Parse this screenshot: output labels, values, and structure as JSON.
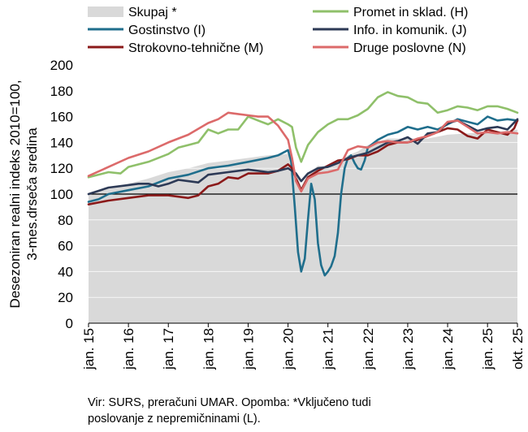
{
  "chart_data": {
    "type": "line",
    "ylabel_line1": "Desezoniran realni indeks 2010=100,",
    "ylabel_line2": "3-mes.drseča sredina",
    "ylim": [
      0,
      200
    ],
    "yticks": [
      0,
      20,
      40,
      60,
      80,
      100,
      120,
      140,
      160,
      180,
      200
    ],
    "reference_line": 100,
    "xlim": [
      2015.0,
      2025.75
    ],
    "xtick_labels": [
      "jan. 15",
      "jan. 16",
      "jan. 17",
      "jan. 18",
      "jan. 19",
      "jan. 20",
      "jan. 21",
      "jan. 22",
      "jan. 23",
      "jan. 24",
      "jan. 25",
      "okt. 25"
    ],
    "xtick_positions": [
      2015.0,
      2016.0,
      2017.0,
      2018.0,
      2019.0,
      2020.0,
      2021.0,
      2022.0,
      2023.0,
      2024.0,
      2025.0,
      2025.75
    ],
    "area": {
      "name": "Skupaj *",
      "color": "#d9d9d9",
      "points": [
        [
          2015.0,
          100
        ],
        [
          2015.5,
          104
        ],
        [
          2016.0,
          108
        ],
        [
          2016.5,
          112
        ],
        [
          2017.0,
          117
        ],
        [
          2017.5,
          120
        ],
        [
          2018.0,
          124
        ],
        [
          2018.5,
          126
        ],
        [
          2019.0,
          128
        ],
        [
          2019.5,
          130
        ],
        [
          2020.0,
          131
        ],
        [
          2020.17,
          120
        ],
        [
          2020.33,
          106
        ],
        [
          2020.5,
          116
        ],
        [
          2020.75,
          122
        ],
        [
          2021.0,
          120
        ],
        [
          2021.25,
          124
        ],
        [
          2021.5,
          130
        ],
        [
          2021.75,
          133
        ],
        [
          2022.0,
          138
        ],
        [
          2022.5,
          143
        ],
        [
          2023.0,
          143
        ],
        [
          2023.5,
          143
        ],
        [
          2024.0,
          146
        ],
        [
          2024.5,
          147
        ],
        [
          2025.0,
          148
        ],
        [
          2025.5,
          149
        ],
        [
          2025.75,
          150
        ]
      ]
    },
    "series": [
      {
        "name": "Promet in sklad. (H)",
        "color": "#8fc06a",
        "points": [
          [
            2015.0,
            113
          ],
          [
            2015.5,
            117
          ],
          [
            2015.8,
            116
          ],
          [
            2016.0,
            121
          ],
          [
            2016.5,
            125
          ],
          [
            2017.0,
            131
          ],
          [
            2017.25,
            136
          ],
          [
            2017.5,
            138
          ],
          [
            2017.75,
            140
          ],
          [
            2018.0,
            150
          ],
          [
            2018.25,
            147
          ],
          [
            2018.5,
            150
          ],
          [
            2018.75,
            150
          ],
          [
            2019.0,
            160
          ],
          [
            2019.25,
            157
          ],
          [
            2019.5,
            154
          ],
          [
            2019.75,
            158
          ],
          [
            2020.0,
            154
          ],
          [
            2020.1,
            152
          ],
          [
            2020.2,
            136
          ],
          [
            2020.33,
            125
          ],
          [
            2020.5,
            138
          ],
          [
            2020.75,
            148
          ],
          [
            2021.0,
            154
          ],
          [
            2021.25,
            158
          ],
          [
            2021.5,
            158
          ],
          [
            2021.75,
            161
          ],
          [
            2022.0,
            166
          ],
          [
            2022.25,
            175
          ],
          [
            2022.5,
            179
          ],
          [
            2022.75,
            176
          ],
          [
            2023.0,
            175
          ],
          [
            2023.25,
            171
          ],
          [
            2023.5,
            170
          ],
          [
            2023.75,
            163
          ],
          [
            2024.0,
            165
          ],
          [
            2024.25,
            168
          ],
          [
            2024.5,
            167
          ],
          [
            2024.75,
            165
          ],
          [
            2025.0,
            168
          ],
          [
            2025.25,
            168
          ],
          [
            2025.5,
            166
          ],
          [
            2025.75,
            163
          ]
        ]
      },
      {
        "name": "Gostinstvo (I)",
        "color": "#1f6e8c",
        "points": [
          [
            2015.0,
            94
          ],
          [
            2015.25,
            96
          ],
          [
            2015.5,
            100
          ],
          [
            2016.0,
            103
          ],
          [
            2016.5,
            106
          ],
          [
            2017.0,
            112
          ],
          [
            2017.5,
            115
          ],
          [
            2018.0,
            120
          ],
          [
            2018.5,
            122
          ],
          [
            2019.0,
            125
          ],
          [
            2019.5,
            128
          ],
          [
            2019.75,
            130
          ],
          [
            2020.0,
            134
          ],
          [
            2020.08,
            125
          ],
          [
            2020.17,
            90
          ],
          [
            2020.25,
            55
          ],
          [
            2020.33,
            40
          ],
          [
            2020.42,
            50
          ],
          [
            2020.5,
            80
          ],
          [
            2020.58,
            108
          ],
          [
            2020.67,
            96
          ],
          [
            2020.75,
            62
          ],
          [
            2020.83,
            45
          ],
          [
            2020.92,
            37
          ],
          [
            2021.0,
            40
          ],
          [
            2021.08,
            44
          ],
          [
            2021.17,
            52
          ],
          [
            2021.25,
            70
          ],
          [
            2021.33,
            100
          ],
          [
            2021.42,
            120
          ],
          [
            2021.5,
            128
          ],
          [
            2021.58,
            130
          ],
          [
            2021.67,
            124
          ],
          [
            2021.75,
            120
          ],
          [
            2021.83,
            119
          ],
          [
            2021.92,
            126
          ],
          [
            2022.0,
            136
          ],
          [
            2022.25,
            142
          ],
          [
            2022.5,
            146
          ],
          [
            2022.75,
            148
          ],
          [
            2023.0,
            152
          ],
          [
            2023.25,
            150
          ],
          [
            2023.5,
            152
          ],
          [
            2023.75,
            150
          ],
          [
            2024.0,
            154
          ],
          [
            2024.25,
            158
          ],
          [
            2024.5,
            156
          ],
          [
            2024.75,
            154
          ],
          [
            2025.0,
            160
          ],
          [
            2025.25,
            157
          ],
          [
            2025.5,
            158
          ],
          [
            2025.75,
            157
          ]
        ]
      },
      {
        "name": "Strokovno-tehnične (M)",
        "color": "#8b1a1a",
        "points": [
          [
            2015.0,
            92
          ],
          [
            2015.5,
            95
          ],
          [
            2016.0,
            97
          ],
          [
            2016.5,
            99
          ],
          [
            2017.0,
            99
          ],
          [
            2017.5,
            97
          ],
          [
            2017.75,
            99
          ],
          [
            2018.0,
            106
          ],
          [
            2018.25,
            108
          ],
          [
            2018.5,
            113
          ],
          [
            2018.75,
            112
          ],
          [
            2019.0,
            116
          ],
          [
            2019.5,
            116
          ],
          [
            2019.75,
            118
          ],
          [
            2020.0,
            123
          ],
          [
            2020.1,
            120
          ],
          [
            2020.2,
            112
          ],
          [
            2020.33,
            103
          ],
          [
            2020.5,
            113
          ],
          [
            2020.75,
            118
          ],
          [
            2021.0,
            122
          ],
          [
            2021.25,
            126
          ],
          [
            2021.5,
            127
          ],
          [
            2021.75,
            130
          ],
          [
            2022.0,
            130
          ],
          [
            2022.25,
            133
          ],
          [
            2022.5,
            138
          ],
          [
            2022.75,
            140
          ],
          [
            2023.0,
            140
          ],
          [
            2023.25,
            142
          ],
          [
            2023.5,
            145
          ],
          [
            2023.75,
            148
          ],
          [
            2024.0,
            151
          ],
          [
            2024.25,
            150
          ],
          [
            2024.5,
            145
          ],
          [
            2024.75,
            143
          ],
          [
            2025.0,
            150
          ],
          [
            2025.25,
            148
          ],
          [
            2025.5,
            146
          ],
          [
            2025.67,
            151
          ],
          [
            2025.75,
            157
          ]
        ]
      },
      {
        "name": "Info. in komunik. (J)",
        "color": "#2d3a56",
        "points": [
          [
            2015.0,
            100
          ],
          [
            2015.5,
            105
          ],
          [
            2016.0,
            107
          ],
          [
            2016.25,
            108
          ],
          [
            2016.5,
            108
          ],
          [
            2016.75,
            106
          ],
          [
            2017.0,
            108
          ],
          [
            2017.25,
            111
          ],
          [
            2017.5,
            110
          ],
          [
            2017.75,
            109
          ],
          [
            2018.0,
            115
          ],
          [
            2018.5,
            117
          ],
          [
            2019.0,
            119
          ],
          [
            2019.5,
            117
          ],
          [
            2019.75,
            118
          ],
          [
            2020.0,
            120
          ],
          [
            2020.2,
            116
          ],
          [
            2020.33,
            110
          ],
          [
            2020.5,
            116
          ],
          [
            2020.75,
            120
          ],
          [
            2021.0,
            121
          ],
          [
            2021.25,
            124
          ],
          [
            2021.5,
            128
          ],
          [
            2021.75,
            130
          ],
          [
            2022.0,
            132
          ],
          [
            2022.25,
            136
          ],
          [
            2022.5,
            140
          ],
          [
            2022.75,
            141
          ],
          [
            2023.0,
            144
          ],
          [
            2023.25,
            139
          ],
          [
            2023.5,
            147
          ],
          [
            2023.75,
            148
          ],
          [
            2024.0,
            155
          ],
          [
            2024.25,
            157
          ],
          [
            2024.5,
            153
          ],
          [
            2024.75,
            149
          ],
          [
            2025.0,
            151
          ],
          [
            2025.25,
            152
          ],
          [
            2025.5,
            150
          ],
          [
            2025.75,
            158
          ]
        ]
      },
      {
        "name": "Druge poslovne (N)",
        "color": "#dc6a6a",
        "points": [
          [
            2015.0,
            114
          ],
          [
            2015.5,
            121
          ],
          [
            2016.0,
            128
          ],
          [
            2016.5,
            133
          ],
          [
            2017.0,
            140
          ],
          [
            2017.5,
            146
          ],
          [
            2018.0,
            155
          ],
          [
            2018.25,
            158
          ],
          [
            2018.5,
            163
          ],
          [
            2018.75,
            162
          ],
          [
            2019.0,
            161
          ],
          [
            2019.25,
            160
          ],
          [
            2019.5,
            160
          ],
          [
            2019.75,
            153
          ],
          [
            2020.0,
            142
          ],
          [
            2020.1,
            128
          ],
          [
            2020.2,
            110
          ],
          [
            2020.33,
            102
          ],
          [
            2020.5,
            112
          ],
          [
            2020.75,
            116
          ],
          [
            2021.0,
            117
          ],
          [
            2021.25,
            119
          ],
          [
            2021.5,
            134
          ],
          [
            2021.75,
            137
          ],
          [
            2022.0,
            136
          ],
          [
            2022.25,
            140
          ],
          [
            2022.5,
            141
          ],
          [
            2022.75,
            140
          ],
          [
            2023.0,
            140
          ],
          [
            2023.25,
            143
          ],
          [
            2023.5,
            145
          ],
          [
            2023.75,
            148
          ],
          [
            2024.0,
            156
          ],
          [
            2024.25,
            157
          ],
          [
            2024.5,
            152
          ],
          [
            2024.75,
            147
          ],
          [
            2025.0,
            148
          ],
          [
            2025.25,
            147
          ],
          [
            2025.5,
            148
          ],
          [
            2025.75,
            147
          ]
        ]
      }
    ],
    "legend": [
      {
        "key": "skupaj",
        "label": "Skupaj *"
      },
      {
        "key": "promet",
        "label": "Promet in sklad. (H)"
      },
      {
        "key": "gostinstvo",
        "label": "Gostinstvo (I)"
      },
      {
        "key": "info",
        "label": "Info. in komunik. (J)"
      },
      {
        "key": "strokovno",
        "label": "Strokovno-tehnične (M)"
      },
      {
        "key": "druge",
        "label": "Druge poslovne (N)"
      }
    ]
  },
  "source_note": {
    "line1": "Vir: SURS, preračuni UMAR. Opomba: *Vključeno tudi",
    "line2": "poslovanje z nepremičninami (L)."
  }
}
